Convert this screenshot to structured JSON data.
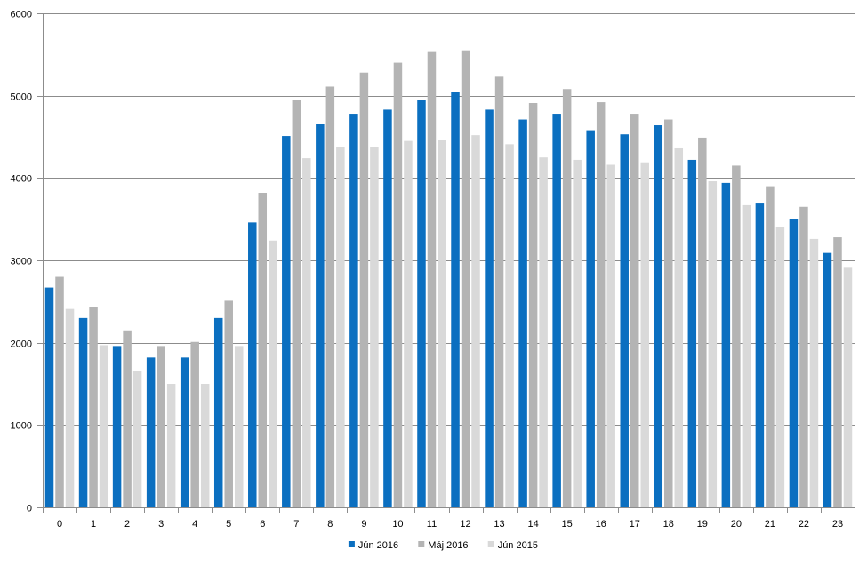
{
  "chart_data": {
    "type": "bar",
    "title": "",
    "xlabel": "",
    "ylabel": "",
    "categories": [
      "0",
      "1",
      "2",
      "3",
      "4",
      "5",
      "6",
      "7",
      "8",
      "9",
      "10",
      "11",
      "12",
      "13",
      "14",
      "15",
      "16",
      "17",
      "18",
      "19",
      "20",
      "21",
      "22",
      "23"
    ],
    "ylim": [
      0,
      6000
    ],
    "yticks": [
      0,
      1000,
      2000,
      3000,
      4000,
      5000,
      6000
    ],
    "grid": true,
    "legend_position": "bottom",
    "series": [
      {
        "name": "Jún 2016",
        "color": "#0b6fc0",
        "values": [
          2670,
          2300,
          1960,
          1820,
          1820,
          2300,
          3460,
          4510,
          4660,
          4780,
          4830,
          4950,
          5040,
          4830,
          4710,
          4780,
          4580,
          4530,
          4640,
          4220,
          3940,
          3690,
          3500,
          3090
        ]
      },
      {
        "name": "Máj 2016",
        "color": "#b4b4b4",
        "values": [
          2800,
          2430,
          2150,
          1960,
          2010,
          2510,
          3820,
          4950,
          5110,
          5280,
          5400,
          5540,
          5550,
          5230,
          4910,
          5080,
          4920,
          4780,
          4710,
          4490,
          4150,
          3900,
          3650,
          3280
        ]
      },
      {
        "name": "Jún 2015",
        "color": "#d9d9d9",
        "values": [
          2410,
          1970,
          1660,
          1500,
          1500,
          1960,
          3240,
          4240,
          4380,
          4380,
          4450,
          4460,
          4520,
          4410,
          4250,
          4220,
          4160,
          4190,
          4360,
          3960,
          3670,
          3400,
          3260,
          2910
        ]
      }
    ]
  }
}
